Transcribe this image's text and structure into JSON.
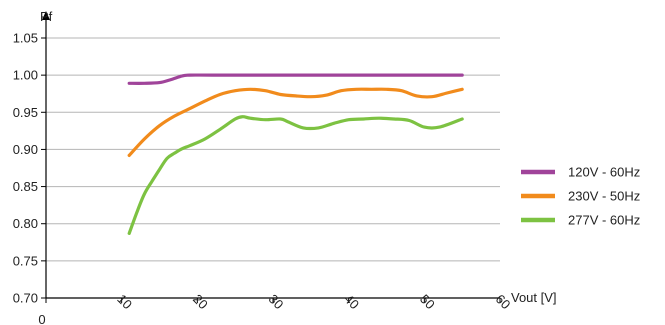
{
  "chart_data": {
    "type": "line",
    "title": "",
    "xlabel": "Vout [V]",
    "ylabel": "Pf",
    "xlim": [
      0,
      60
    ],
    "ylim": [
      0.7,
      1.05
    ],
    "x_ticks": [
      0,
      10,
      20,
      30,
      40,
      50,
      60
    ],
    "y_ticks": [
      0.7,
      0.75,
      0.8,
      0.85,
      0.9,
      0.95,
      1.0,
      1.05
    ],
    "x_tick_labels": [
      "0",
      "10",
      "20",
      "30",
      "40",
      "50",
      "60"
    ],
    "y_tick_labels": [
      "0.70",
      "0.75",
      "0.80",
      "0.85",
      "0.90",
      "0.95",
      "1.00",
      "1.05"
    ],
    "grid": "horizontal",
    "legend_position": "right",
    "series": [
      {
        "name": "120V - 60Hz",
        "color": "#a0449a",
        "x": [
          11,
          13,
          15,
          16.5,
          18,
          19,
          22,
          30,
          40,
          50,
          55
        ],
        "y": [
          0.989,
          0.989,
          0.99,
          0.994,
          0.999,
          1.0,
          1.0,
          1.0,
          1.0,
          1.0,
          1.0
        ]
      },
      {
        "name": "230V - 50Hz",
        "color": "#f18b1c",
        "x": [
          11,
          13,
          15,
          17,
          19,
          21,
          23,
          25,
          27,
          29,
          31,
          33,
          35,
          37,
          39,
          41,
          43,
          45,
          47,
          49,
          51,
          53,
          55
        ],
        "y": [
          0.892,
          0.914,
          0.932,
          0.945,
          0.955,
          0.965,
          0.974,
          0.979,
          0.981,
          0.979,
          0.974,
          0.972,
          0.971,
          0.973,
          0.979,
          0.981,
          0.981,
          0.981,
          0.979,
          0.972,
          0.971,
          0.976,
          0.981
        ]
      },
      {
        "name": "277V - 60Hz",
        "color": "#7dc242",
        "x": [
          11,
          12,
          13,
          14,
          15,
          16,
          17,
          18,
          19,
          21,
          23,
          25,
          26,
          27,
          29,
          31,
          32,
          34,
          36,
          38,
          40,
          42,
          44,
          46,
          48,
          50,
          52,
          55
        ],
        "y": [
          0.787,
          0.815,
          0.84,
          0.857,
          0.873,
          0.888,
          0.895,
          0.901,
          0.905,
          0.914,
          0.927,
          0.941,
          0.944,
          0.942,
          0.94,
          0.941,
          0.937,
          0.929,
          0.929,
          0.935,
          0.94,
          0.941,
          0.942,
          0.941,
          0.939,
          0.93,
          0.93,
          0.941
        ]
      }
    ]
  }
}
